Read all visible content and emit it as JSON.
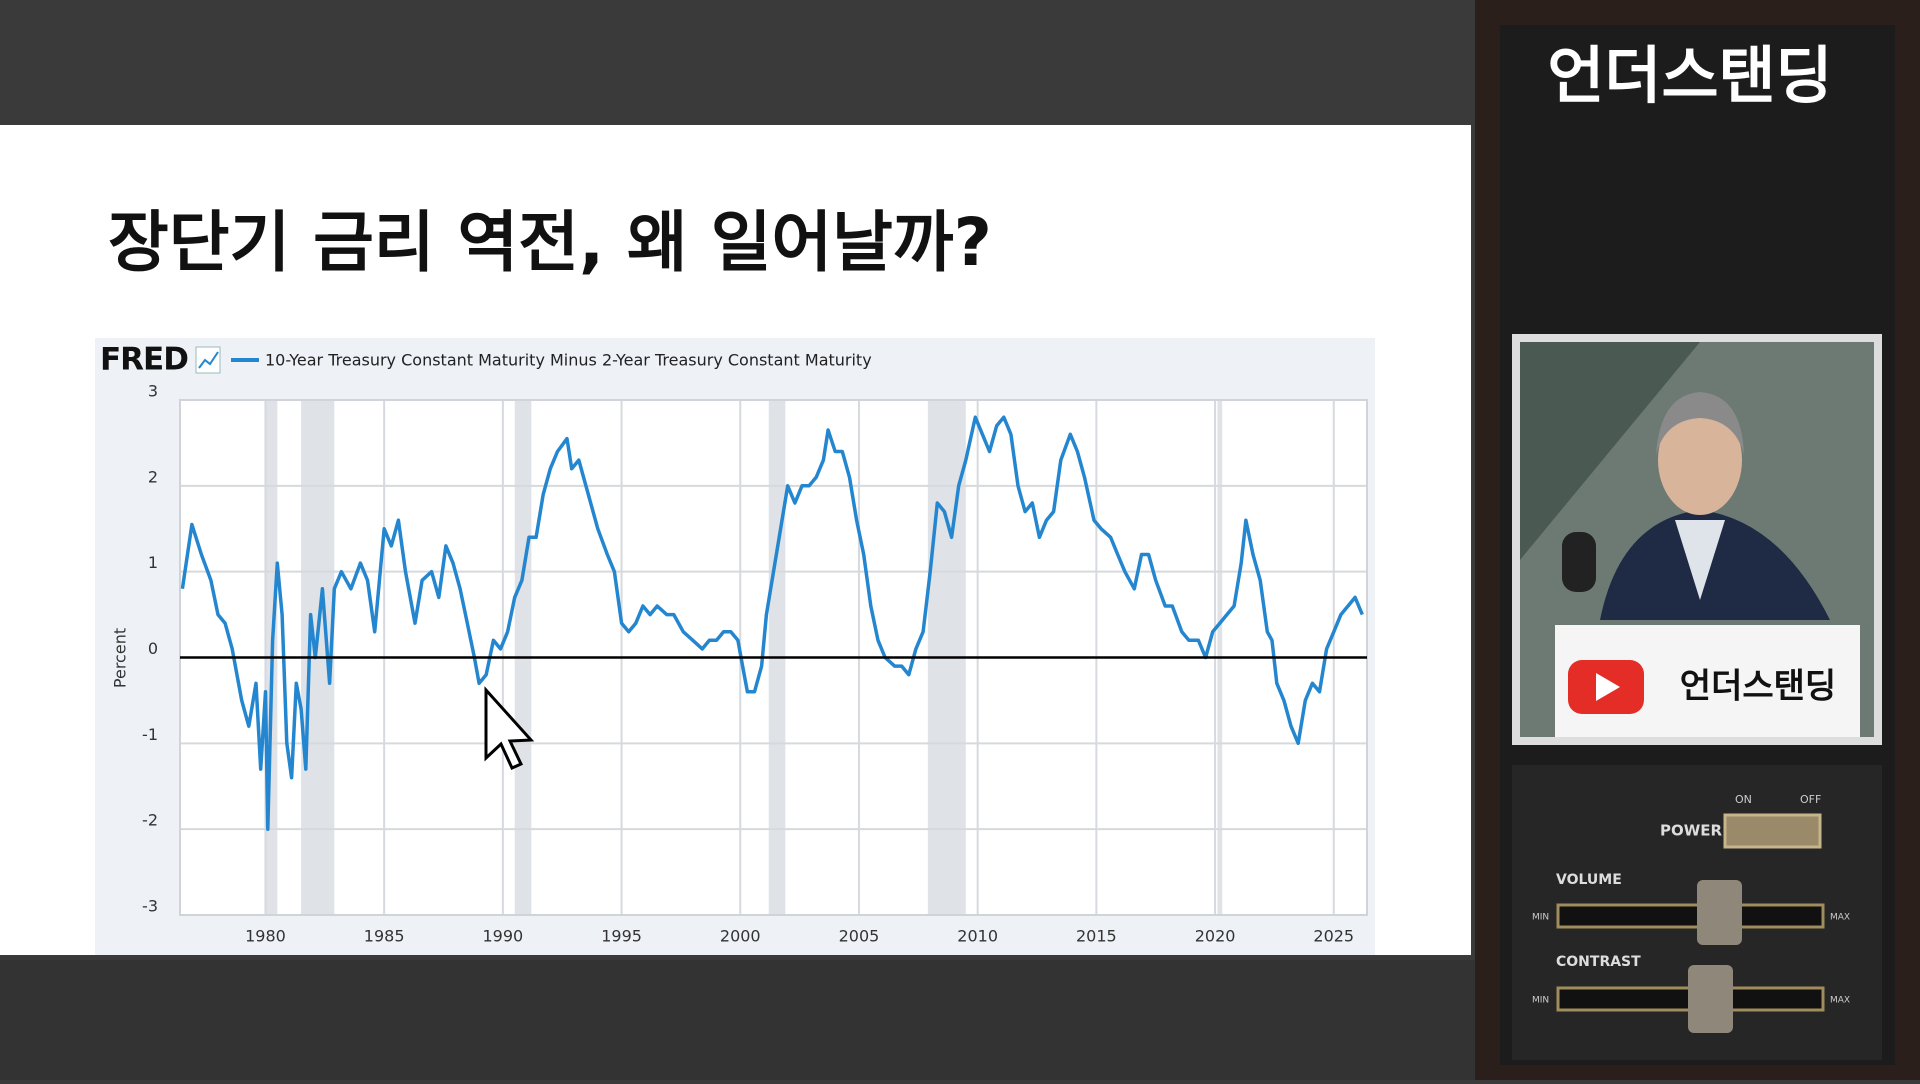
{
  "chart_data": {
    "type": "line",
    "title": "장단기 금리 역전, 왜 일어날까?",
    "source_logo": "FRED",
    "ylabel": "Percent",
    "x": [
      1976.5,
      1976.9,
      1977.3,
      1977.7,
      1978.0,
      1978.3,
      1978.6,
      1979.0,
      1979.3,
      1979.6,
      1979.8,
      1980.0,
      1980.1,
      1980.3,
      1980.5,
      1980.7,
      1980.9,
      1981.1,
      1981.3,
      1981.5,
      1981.7,
      1981.9,
      1982.1,
      1982.4,
      1982.7,
      1982.9,
      1983.2,
      1983.6,
      1984.0,
      1984.3,
      1984.6,
      1984.9,
      1985.0,
      1985.3,
      1985.6,
      1985.9,
      1986.3,
      1986.6,
      1987.0,
      1987.3,
      1987.6,
      1987.9,
      1988.2,
      1988.5,
      1988.8,
      1989.0,
      1989.3,
      1989.6,
      1989.9,
      1990.2,
      1990.5,
      1990.8,
      1991.1,
      1991.4,
      1991.7,
      1992.0,
      1992.3,
      1992.7,
      1992.9,
      1993.2,
      1993.6,
      1994.0,
      1994.4,
      1994.7,
      1995.0,
      1995.3,
      1995.6,
      1995.9,
      1996.2,
      1996.5,
      1996.9,
      1997.2,
      1997.6,
      1998.0,
      1998.4,
      1998.7,
      1999.0,
      1999.3,
      1999.6,
      1999.9,
      2000.1,
      2000.3,
      2000.6,
      2000.9,
      2001.1,
      2001.4,
      2001.7,
      2002.0,
      2002.3,
      2002.6,
      2002.9,
      2003.2,
      2003.5,
      2003.7,
      2004.0,
      2004.3,
      2004.6,
      2004.9,
      2005.2,
      2005.5,
      2005.8,
      2006.1,
      2006.5,
      2006.8,
      2007.1,
      2007.4,
      2007.7,
      2008.0,
      2008.3,
      2008.6,
      2008.9,
      2009.2,
      2009.5,
      2009.9,
      2010.2,
      2010.5,
      2010.8,
      2011.1,
      2011.4,
      2011.7,
      2012.0,
      2012.3,
      2012.6,
      2012.9,
      2013.2,
      2013.5,
      2013.9,
      2014.2,
      2014.5,
      2014.9,
      2015.2,
      2015.6,
      2015.9,
      2016.2,
      2016.6,
      2016.9,
      2017.2,
      2017.5,
      2017.9,
      2018.2,
      2018.6,
      2018.9,
      2019.3,
      2019.6,
      2019.9,
      2020.2,
      2020.5,
      2020.8,
      2021.1,
      2021.3,
      2021.6,
      2021.9,
      2022.2,
      2022.4,
      2022.6,
      2022.9,
      2023.2,
      2023.5,
      2023.8,
      2024.1,
      2024.4,
      2024.7,
      2025.0,
      2025.3,
      2025.6,
      2025.9,
      2026.2
    ],
    "series": [
      {
        "name": "10-Year Treasury Constant Maturity Minus 2-Year Treasury Constant Maturity",
        "color": "#2586d0",
        "values": [
          0.8,
          1.55,
          1.2,
          0.9,
          0.5,
          0.4,
          0.1,
          -0.5,
          -0.8,
          -0.3,
          -1.3,
          -0.4,
          -2.0,
          0.2,
          1.1,
          0.5,
          -1.0,
          -1.4,
          -0.3,
          -0.6,
          -1.3,
          0.5,
          0.0,
          0.8,
          -0.3,
          0.8,
          1.0,
          0.8,
          1.1,
          0.9,
          0.3,
          1.2,
          1.5,
          1.3,
          1.6,
          1.0,
          0.4,
          0.9,
          1.0,
          0.7,
          1.3,
          1.1,
          0.8,
          0.4,
          0.0,
          -0.3,
          -0.2,
          0.2,
          0.1,
          0.3,
          0.7,
          0.9,
          1.4,
          1.4,
          1.9,
          2.2,
          2.4,
          2.55,
          2.2,
          2.3,
          1.9,
          1.5,
          1.2,
          1.0,
          0.4,
          0.3,
          0.4,
          0.6,
          0.5,
          0.6,
          0.5,
          0.5,
          0.3,
          0.2,
          0.1,
          0.2,
          0.2,
          0.3,
          0.3,
          0.2,
          -0.1,
          -0.4,
          -0.4,
          -0.1,
          0.5,
          1.0,
          1.5,
          2.0,
          1.8,
          2.0,
          2.0,
          2.1,
          2.3,
          2.65,
          2.4,
          2.4,
          2.1,
          1.6,
          1.2,
          0.6,
          0.2,
          0.0,
          -0.1,
          -0.1,
          -0.2,
          0.1,
          0.3,
          1.0,
          1.8,
          1.7,
          1.4,
          2.0,
          2.3,
          2.8,
          2.6,
          2.4,
          2.7,
          2.8,
          2.6,
          2.0,
          1.7,
          1.8,
          1.4,
          1.6,
          1.7,
          2.3,
          2.6,
          2.4,
          2.1,
          1.6,
          1.5,
          1.4,
          1.2,
          1.0,
          0.8,
          1.2,
          1.2,
          0.9,
          0.6,
          0.6,
          0.3,
          0.2,
          0.2,
          0.0,
          0.3,
          0.4,
          0.5,
          0.6,
          1.1,
          1.6,
          1.2,
          0.9,
          0.3,
          0.2,
          -0.3,
          -0.5,
          -0.8,
          -1.0,
          -0.5,
          -0.3,
          -0.4,
          0.1,
          0.3,
          0.5,
          0.6,
          0.7,
          0.5
        ]
      }
    ],
    "recessions": [
      [
        1980.0,
        1980.5
      ],
      [
        1981.5,
        1982.9
      ],
      [
        1990.5,
        1991.2
      ],
      [
        2001.2,
        2001.9
      ],
      [
        2007.9,
        2009.5
      ],
      [
        2020.1,
        2020.3
      ]
    ],
    "reference_line": 0,
    "xlim": [
      1976.4,
      2026.4
    ],
    "ylim": [
      -3,
      3
    ],
    "xticks": [
      1980,
      1985,
      1990,
      1995,
      2000,
      2005,
      2010,
      2015,
      2020,
      2025
    ],
    "yticks": [
      -3,
      -2,
      -1,
      0,
      1,
      2,
      3
    ],
    "grid": true
  },
  "channel_title": "언더스탠딩",
  "name_card": "언더스탠딩",
  "device": {
    "on": "ON",
    "off": "OFF",
    "power": "POWER",
    "volume": "VOLUME",
    "contrast": "CONTRAST",
    "min": "MIN",
    "max": "MAX"
  }
}
